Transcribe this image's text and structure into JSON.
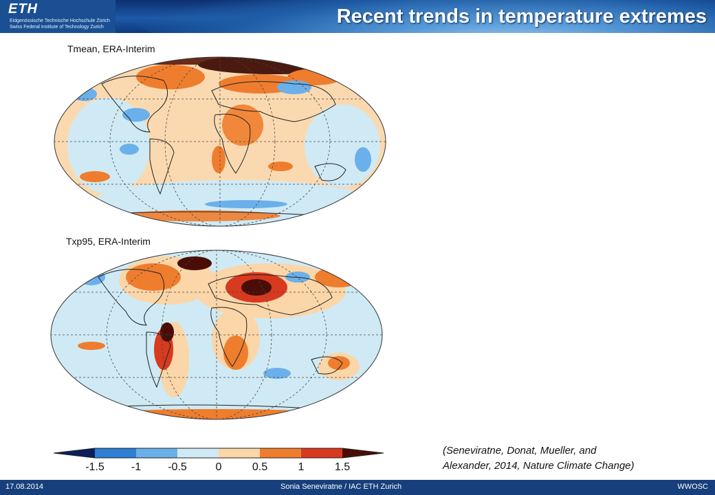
{
  "header": {
    "logo": "ETH",
    "institution_de": "Eidgenössische Technische Hochschule Zürich",
    "institution_en": "Swiss Federal Institute of Technology Zurich",
    "title": "Recent trends in temperature extremes"
  },
  "maps": [
    {
      "label": "Tmean, ERA-Interim"
    },
    {
      "label": "Txp95, ERA-Interim"
    }
  ],
  "colorbar": {
    "ticks": [
      "-1.5",
      "-1",
      "-0.5",
      "0",
      "0.5",
      "1",
      "1.5"
    ],
    "colors": [
      "#0b1f5c",
      "#2f7fd4",
      "#6bb0ea",
      "#cfeaf5",
      "#fbd6a8",
      "#ef7d2e",
      "#d83a20",
      "#4a0d06"
    ]
  },
  "citation": {
    "line1": "(Seneviratne, Donat, Mueller, and",
    "line2": "Alexander, 2014, Nature Climate Change)"
  },
  "footer": {
    "date": "17.08.2014",
    "author": "Sonia Seneviratne / IAC ETH Zurich",
    "event": "WWOSC"
  }
}
